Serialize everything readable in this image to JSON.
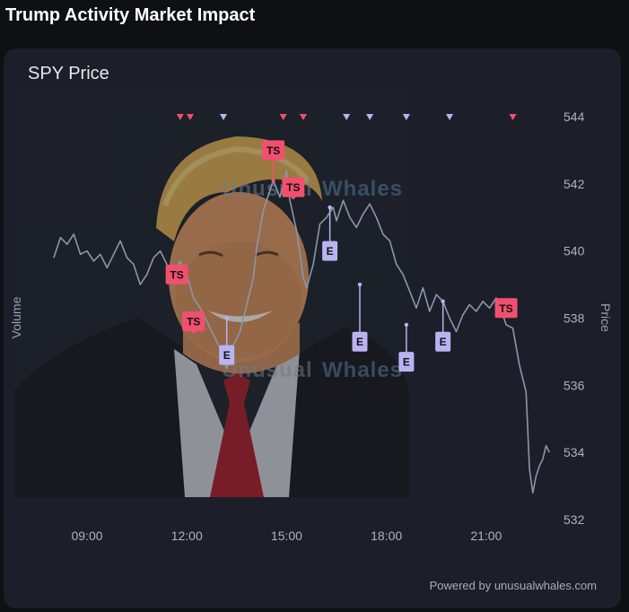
{
  "page": {
    "title": "Trump Activity Market Impact"
  },
  "card": {
    "title": "SPY Price",
    "footer": "Powered by unusualwhales.com"
  },
  "watermark": {
    "word1": "Unusual",
    "word2": "Whales"
  },
  "colors": {
    "line": "#8c96a8",
    "ts": "#f0506e",
    "e": "#b9b3f2",
    "background": "#1c1f29"
  },
  "chart_data": {
    "type": "line",
    "title": "SPY Price",
    "ylabel": "Price",
    "y2label": "Volume",
    "xlim": [
      7.3,
      23.0
    ],
    "ylim": [
      532,
      544
    ],
    "x_ticks": [
      9,
      12,
      15,
      18,
      21
    ],
    "x_tick_labels": [
      "09:00",
      "12:00",
      "15:00",
      "18:00",
      "21:00"
    ],
    "y_ticks": [
      532,
      534,
      536,
      538,
      540,
      542,
      544
    ],
    "series": [
      {
        "points": [
          [
            8.0,
            539.8
          ],
          [
            8.2,
            540.4
          ],
          [
            8.4,
            540.2
          ],
          [
            8.6,
            540.5
          ],
          [
            8.8,
            539.9
          ],
          [
            9.0,
            540.0
          ],
          [
            9.2,
            539.7
          ],
          [
            9.4,
            539.9
          ],
          [
            9.6,
            539.5
          ],
          [
            9.8,
            539.9
          ],
          [
            10.0,
            540.3
          ],
          [
            10.2,
            539.8
          ],
          [
            10.4,
            539.6
          ],
          [
            10.6,
            539.0
          ],
          [
            10.8,
            539.3
          ],
          [
            11.0,
            539.8
          ],
          [
            11.2,
            540.0
          ],
          [
            11.4,
            539.6
          ],
          [
            11.6,
            539.2
          ],
          [
            11.8,
            539.7
          ],
          [
            12.0,
            539.3
          ],
          [
            12.2,
            538.6
          ],
          [
            12.4,
            538.3
          ],
          [
            12.6,
            537.9
          ],
          [
            12.8,
            537.5
          ],
          [
            13.0,
            537.1
          ],
          [
            13.2,
            536.5
          ],
          [
            13.4,
            537.2
          ],
          [
            13.6,
            537.6
          ],
          [
            13.8,
            538.4
          ],
          [
            14.0,
            539.2
          ],
          [
            14.1,
            540.1
          ],
          [
            14.3,
            541.2
          ],
          [
            14.5,
            541.8
          ],
          [
            14.6,
            542.1
          ],
          [
            14.8,
            541.6
          ],
          [
            15.0,
            542.4
          ],
          [
            15.1,
            541.5
          ],
          [
            15.3,
            540.6
          ],
          [
            15.5,
            539.2
          ],
          [
            15.6,
            538.9
          ],
          [
            15.8,
            539.6
          ],
          [
            16.0,
            540.8
          ],
          [
            16.2,
            541.0
          ],
          [
            16.4,
            541.3
          ],
          [
            16.5,
            540.9
          ],
          [
            16.7,
            541.5
          ],
          [
            16.9,
            541.0
          ],
          [
            17.1,
            540.7
          ],
          [
            17.3,
            541.1
          ],
          [
            17.5,
            541.4
          ],
          [
            17.7,
            541.0
          ],
          [
            17.9,
            540.5
          ],
          [
            18.1,
            540.3
          ],
          [
            18.3,
            539.6
          ],
          [
            18.5,
            539.3
          ],
          [
            18.7,
            538.8
          ],
          [
            18.9,
            538.3
          ],
          [
            19.1,
            538.9
          ],
          [
            19.3,
            538.2
          ],
          [
            19.5,
            538.7
          ],
          [
            19.7,
            538.5
          ],
          [
            19.9,
            538.0
          ],
          [
            20.1,
            537.6
          ],
          [
            20.3,
            538.1
          ],
          [
            20.5,
            538.4
          ],
          [
            20.7,
            538.2
          ],
          [
            20.9,
            538.5
          ],
          [
            21.1,
            538.3
          ],
          [
            21.3,
            538.6
          ],
          [
            21.5,
            538.1
          ],
          [
            21.6,
            537.8
          ],
          [
            21.8,
            537.7
          ],
          [
            22.0,
            536.6
          ],
          [
            22.2,
            535.8
          ],
          [
            22.3,
            533.5
          ],
          [
            22.4,
            532.8
          ],
          [
            22.5,
            533.3
          ],
          [
            22.6,
            533.6
          ],
          [
            22.7,
            533.8
          ],
          [
            22.8,
            534.2
          ],
          [
            22.9,
            534.0
          ]
        ]
      }
    ],
    "top_markers": [
      {
        "x": 11.8,
        "type": "TS"
      },
      {
        "x": 12.1,
        "type": "TS"
      },
      {
        "x": 13.1,
        "type": "E"
      },
      {
        "x": 14.9,
        "type": "TS"
      },
      {
        "x": 15.5,
        "type": "TS"
      },
      {
        "x": 16.8,
        "type": "E"
      },
      {
        "x": 17.5,
        "type": "E"
      },
      {
        "x": 18.6,
        "type": "E"
      },
      {
        "x": 19.9,
        "type": "E"
      },
      {
        "x": 21.8,
        "type": "TS"
      }
    ],
    "event_badges": [
      {
        "label": "TS",
        "x": 11.7,
        "y": 539.4,
        "badge_price": 539.3,
        "type": "TS"
      },
      {
        "label": "TS",
        "x": 12.2,
        "y": 537.6,
        "badge_price": 537.9,
        "type": "TS"
      },
      {
        "label": "E",
        "x": 13.2,
        "y": 538.0,
        "badge_price": 536.9,
        "type": "E"
      },
      {
        "label": "TS",
        "x": 14.6,
        "y": 542.1,
        "badge_price": 543.0,
        "type": "TS"
      },
      {
        "label": "TS",
        "x": 15.2,
        "y": 541.6,
        "badge_price": 541.9,
        "type": "TS"
      },
      {
        "label": "E",
        "x": 16.3,
        "y": 541.3,
        "badge_price": 540.0,
        "type": "E"
      },
      {
        "label": "E",
        "x": 17.2,
        "y": 539.0,
        "badge_price": 537.3,
        "type": "E"
      },
      {
        "label": "E",
        "x": 18.6,
        "y": 537.8,
        "badge_price": 536.7,
        "type": "E"
      },
      {
        "label": "E",
        "x": 19.7,
        "y": 538.5,
        "badge_price": 537.3,
        "type": "E"
      },
      {
        "label": "TS",
        "x": 21.6,
        "y": 538.2,
        "badge_price": 538.3,
        "type": "TS"
      }
    ]
  }
}
